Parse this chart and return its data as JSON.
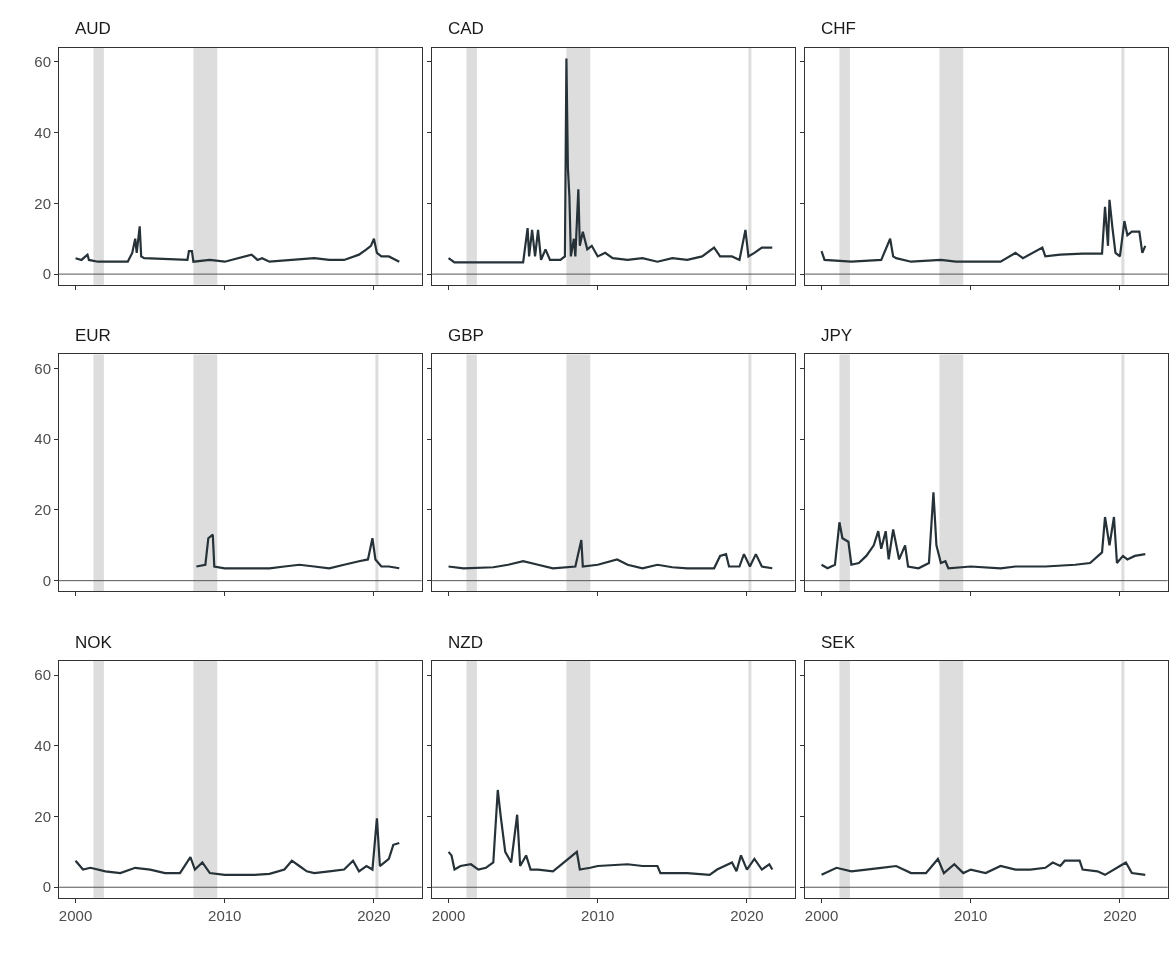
{
  "chart_data": [
    {
      "type": "line",
      "title": "AUD",
      "color": "#263238",
      "xlim": [
        1998.9,
        2023.2
      ],
      "ylim": [
        -3,
        64
      ],
      "xticks": [
        2000,
        2010,
        2020
      ],
      "yticks": [
        0,
        20,
        40,
        60
      ],
      "tick_labels": "y",
      "ref_lines": [
        {
          "axis": "y",
          "value": 0,
          "color": "#555555"
        }
      ],
      "bands": [
        {
          "axis": "x",
          "from": 2001.2,
          "to": 2001.9,
          "color": "#dddddd"
        },
        {
          "axis": "x",
          "from": 2007.9,
          "to": 2009.5,
          "color": "#dddddd"
        },
        {
          "axis": "x",
          "from": 2020.1,
          "to": 2020.3,
          "color": "#dddddd"
        }
      ],
      "x": [
        2000,
        2000.4,
        2000.8,
        2000.9,
        2001.5,
        2003.5,
        2003.8,
        2004.0,
        2004.1,
        2004.3,
        2004.4,
        2004.6,
        2007.5,
        2007.6,
        2007.8,
        2007.9,
        2009,
        2010,
        2011.8,
        2012.2,
        2012.5,
        2013,
        2016,
        2017,
        2018,
        2019,
        2019.5,
        2019.8,
        2020.0,
        2020.2,
        2020.5,
        2021,
        2021.7
      ],
      "values": [
        4.5,
        4,
        5.5,
        4,
        3.5,
        3.5,
        6,
        10,
        6,
        13.5,
        5,
        4.5,
        4,
        6.5,
        6.5,
        3.5,
        4,
        3.5,
        5.5,
        4,
        4.5,
        3.5,
        4.5,
        4,
        4,
        5.5,
        7,
        8,
        10,
        6,
        5,
        5,
        3.5
      ]
    },
    {
      "type": "line",
      "title": "CAD",
      "color": "#263238",
      "xlim": [
        1998.9,
        2023.2
      ],
      "ylim": [
        -3,
        64
      ],
      "xticks": [
        2000,
        2010,
        2020
      ],
      "yticks": [
        0,
        20,
        40,
        60
      ],
      "tick_labels": false,
      "ref_lines": [
        {
          "axis": "y",
          "value": 0,
          "color": "#555555"
        }
      ],
      "bands": [
        {
          "axis": "x",
          "from": 2001.2,
          "to": 2001.9,
          "color": "#dddddd"
        },
        {
          "axis": "x",
          "from": 2007.9,
          "to": 2009.5,
          "color": "#dddddd"
        },
        {
          "axis": "x",
          "from": 2020.1,
          "to": 2020.3,
          "color": "#dddddd"
        }
      ],
      "x": [
        2000,
        2000.4,
        2005,
        2005.3,
        2005.4,
        2005.6,
        2005.8,
        2006.0,
        2006.2,
        2006.5,
        2006.8,
        2007.5,
        2007.8,
        2007.9,
        2008.0,
        2008.1,
        2008.2,
        2008.4,
        2008.5,
        2008.7,
        2008.8,
        2009,
        2009.3,
        2009.6,
        2010,
        2010.5,
        2011,
        2012,
        2013,
        2014,
        2015,
        2016,
        2017,
        2017.8,
        2018.2,
        2019,
        2019.5,
        2019.9,
        2020.1,
        2020.5,
        2021,
        2021.7
      ],
      "values": [
        4.5,
        3.3,
        3.3,
        13,
        5,
        12.5,
        5,
        12.5,
        4,
        7,
        4,
        4,
        5,
        61,
        30,
        22,
        5,
        10,
        5,
        24,
        8,
        12,
        7,
        8,
        5,
        6,
        4.5,
        4,
        4.5,
        3.5,
        4.5,
        4,
        5,
        7.5,
        5,
        5,
        4,
        12.5,
        5,
        6,
        7.5,
        7.5
      ]
    },
    {
      "type": "line",
      "title": "CHF",
      "color": "#263238",
      "xlim": [
        1998.9,
        2023.2
      ],
      "ylim": [
        -3,
        64
      ],
      "xticks": [
        2000,
        2010,
        2020
      ],
      "yticks": [
        0,
        20,
        40,
        60
      ],
      "tick_labels": false,
      "ref_lines": [
        {
          "axis": "y",
          "value": 0,
          "color": "#555555"
        }
      ],
      "bands": [
        {
          "axis": "x",
          "from": 2001.2,
          "to": 2001.9,
          "color": "#dddddd"
        },
        {
          "axis": "x",
          "from": 2007.9,
          "to": 2009.5,
          "color": "#dddddd"
        },
        {
          "axis": "x",
          "from": 2020.1,
          "to": 2020.3,
          "color": "#dddddd"
        }
      ],
      "x": [
        2000,
        2000.2,
        2002,
        2004,
        2004.6,
        2004.8,
        2005,
        2006,
        2008,
        2009,
        2010,
        2012,
        2013,
        2013.5,
        2014.8,
        2015,
        2016,
        2017.5,
        2018.8,
        2019.0,
        2019.2,
        2019.3,
        2019.5,
        2019.7,
        2020.0,
        2020.3,
        2020.5,
        2020.8,
        2021.3,
        2021.5,
        2021.7
      ],
      "values": [
        6.5,
        4,
        3.5,
        4,
        10,
        5,
        4.5,
        3.5,
        4,
        3.5,
        3.5,
        3.5,
        6,
        4.5,
        7.5,
        5,
        5.5,
        5.8,
        5.8,
        19,
        8,
        21,
        13,
        6,
        5,
        15,
        11,
        12,
        12,
        6,
        8
      ]
    },
    {
      "type": "line",
      "title": "EUR",
      "color": "#263238",
      "xlim": [
        1998.9,
        2023.2
      ],
      "ylim": [
        -3,
        64
      ],
      "xticks": [
        2000,
        2010,
        2020
      ],
      "yticks": [
        0,
        20,
        40,
        60
      ],
      "tick_labels": "y",
      "ref_lines": [
        {
          "axis": "y",
          "value": 0,
          "color": "#555555"
        }
      ],
      "bands": [
        {
          "axis": "x",
          "from": 2001.2,
          "to": 2001.9,
          "color": "#dddddd"
        },
        {
          "axis": "x",
          "from": 2007.9,
          "to": 2009.5,
          "color": "#dddddd"
        },
        {
          "axis": "x",
          "from": 2020.1,
          "to": 2020.3,
          "color": "#dddddd"
        }
      ],
      "x": [
        2008.1,
        2008.7,
        2008.9,
        2009.2,
        2009.3,
        2010,
        2013,
        2014,
        2015,
        2016,
        2017,
        2018,
        2019,
        2019.6,
        2019.9,
        2020.1,
        2020.5,
        2021,
        2021.7
      ],
      "values": [
        4,
        4.5,
        12,
        13,
        4,
        3.5,
        3.5,
        4,
        4.5,
        4,
        3.5,
        4.5,
        5.5,
        6,
        12,
        6,
        4,
        4,
        3.5
      ]
    },
    {
      "type": "line",
      "title": "GBP",
      "color": "#263238",
      "xlim": [
        1998.9,
        2023.2
      ],
      "ylim": [
        -3,
        64
      ],
      "xticks": [
        2000,
        2010,
        2020
      ],
      "yticks": [
        0,
        20,
        40,
        60
      ],
      "tick_labels": false,
      "ref_lines": [
        {
          "axis": "y",
          "value": 0,
          "color": "#555555"
        }
      ],
      "bands": [
        {
          "axis": "x",
          "from": 2001.2,
          "to": 2001.9,
          "color": "#dddddd"
        },
        {
          "axis": "x",
          "from": 2007.9,
          "to": 2009.5,
          "color": "#dddddd"
        },
        {
          "axis": "x",
          "from": 2020.1,
          "to": 2020.3,
          "color": "#dddddd"
        }
      ],
      "x": [
        2000,
        2001,
        2003,
        2004,
        2005,
        2006,
        2007,
        2008.5,
        2008.9,
        2009.0,
        2010,
        2011.3,
        2012,
        2013,
        2014,
        2015,
        2016,
        2017.8,
        2018.2,
        2018.6,
        2018.8,
        2019.5,
        2019.8,
        2020.2,
        2020.6,
        2021,
        2021.7
      ],
      "values": [
        4,
        3.5,
        3.8,
        4.5,
        5.5,
        4.5,
        3.5,
        4,
        11.5,
        4,
        4.5,
        6,
        4.5,
        3.5,
        4.5,
        3.8,
        3.5,
        3.5,
        7,
        7.5,
        4,
        4,
        7.5,
        4,
        7.5,
        4,
        3.5
      ]
    },
    {
      "type": "line",
      "title": "JPY",
      "color": "#263238",
      "xlim": [
        1998.9,
        2023.2
      ],
      "ylim": [
        -3,
        64
      ],
      "xticks": [
        2000,
        2010,
        2020
      ],
      "yticks": [
        0,
        20,
        40,
        60
      ],
      "tick_labels": false,
      "ref_lines": [
        {
          "axis": "y",
          "value": 0,
          "color": "#555555"
        }
      ],
      "bands": [
        {
          "axis": "x",
          "from": 2001.2,
          "to": 2001.9,
          "color": "#dddddd"
        },
        {
          "axis": "x",
          "from": 2007.9,
          "to": 2009.5,
          "color": "#dddddd"
        },
        {
          "axis": "x",
          "from": 2020.1,
          "to": 2020.3,
          "color": "#dddddd"
        }
      ],
      "x": [
        2000,
        2000.4,
        2000.9,
        2001.2,
        2001.4,
        2001.8,
        2002.0,
        2002.5,
        2003,
        2003.5,
        2003.8,
        2004.0,
        2004.3,
        2004.5,
        2004.8,
        2005.2,
        2005.6,
        2005.8,
        2006.5,
        2007.2,
        2007.5,
        2007.7,
        2008,
        2008.3,
        2008.5,
        2010,
        2012,
        2013,
        2015,
        2017,
        2018,
        2018.8,
        2019.0,
        2019.3,
        2019.6,
        2019.8,
        2020.2,
        2020.5,
        2021,
        2021.7
      ],
      "values": [
        4.5,
        3.5,
        4.5,
        16.5,
        12,
        11,
        4.5,
        5,
        7,
        10,
        14,
        9,
        14,
        6,
        14.5,
        6,
        10,
        4,
        3.5,
        5,
        25,
        10,
        5,
        5.5,
        3.5,
        4,
        3.5,
        4,
        4,
        4.5,
        5,
        8,
        18,
        10,
        18,
        5,
        7,
        6,
        7,
        7.5
      ]
    },
    {
      "type": "line",
      "title": "NOK",
      "color": "#263238",
      "xlim": [
        1998.9,
        2023.2
      ],
      "ylim": [
        -3,
        64
      ],
      "xticks": [
        2000,
        2010,
        2020
      ],
      "yticks": [
        0,
        20,
        40,
        60
      ],
      "ref_lines": [
        {
          "axis": "y",
          "value": 0,
          "color": "#555555"
        }
      ],
      "bands": [
        {
          "axis": "x",
          "from": 2001.2,
          "to": 2001.9,
          "color": "#dddddd"
        },
        {
          "axis": "x",
          "from": 2007.9,
          "to": 2009.5,
          "color": "#dddddd"
        },
        {
          "axis": "x",
          "from": 2020.1,
          "to": 2020.3,
          "color": "#dddddd"
        }
      ],
      "x": [
        2000,
        2000.5,
        2001,
        2002,
        2003,
        2004,
        2005,
        2006,
        2007,
        2007.7,
        2008,
        2008.5,
        2009,
        2010,
        2012,
        2013,
        2014,
        2014.5,
        2015,
        2015.5,
        2016,
        2017,
        2018,
        2018.6,
        2019,
        2019.5,
        2019.9,
        2020.2,
        2020.4,
        2021,
        2021.3,
        2021.7
      ],
      "values": [
        7.5,
        5,
        5.5,
        4.5,
        4,
        5.5,
        5,
        4,
        4,
        8.5,
        5,
        7,
        4,
        3.5,
        3.5,
        3.8,
        5,
        7.5,
        6,
        4.5,
        4,
        4.5,
        5,
        7.5,
        4.5,
        6,
        5,
        19.5,
        6,
        8,
        12,
        12.5
      ]
    },
    {
      "type": "line",
      "title": "NZD",
      "color": "#263238",
      "xlim": [
        1998.9,
        2023.2
      ],
      "ylim": [
        -3,
        64
      ],
      "xticks": [
        2000,
        2010,
        2020
      ],
      "yticks": [
        0,
        20,
        40,
        60
      ],
      "tick_labels": "x",
      "ref_lines": [
        {
          "axis": "y",
          "value": 0,
          "color": "#555555"
        }
      ],
      "bands": [
        {
          "axis": "x",
          "from": 2001.2,
          "to": 2001.9,
          "color": "#dddddd"
        },
        {
          "axis": "x",
          "from": 2007.9,
          "to": 2009.5,
          "color": "#dddddd"
        },
        {
          "axis": "x",
          "from": 2020.1,
          "to": 2020.3,
          "color": "#dddddd"
        }
      ],
      "x": [
        2000,
        2000.2,
        2000.4,
        2000.8,
        2001.5,
        2002,
        2002.5,
        2003.0,
        2003.3,
        2003.5,
        2003.8,
        2004.2,
        2004.6,
        2004.8,
        2005.2,
        2005.5,
        2006,
        2007,
        2008.6,
        2008.8,
        2009.5,
        2010,
        2012,
        2013,
        2014,
        2014.2,
        2016,
        2017.5,
        2018,
        2019,
        2019.3,
        2019.6,
        2020,
        2020.5,
        2021,
        2021.5,
        2021.7
      ],
      "values": [
        10,
        9,
        5,
        6,
        6.5,
        5,
        5.5,
        7,
        27.5,
        20,
        10,
        7,
        20.5,
        6,
        9,
        5,
        5,
        4.5,
        10,
        5,
        5.5,
        6,
        6.5,
        6,
        6,
        4,
        4,
        3.5,
        5,
        7,
        4.5,
        9,
        5,
        8,
        5,
        6.5,
        5
      ]
    },
    {
      "type": "line",
      "title": "SEK",
      "color": "#263238",
      "xlim": [
        1998.9,
        2023.2
      ],
      "ylim": [
        -3,
        64
      ],
      "xticks": [
        2000,
        2010,
        2020
      ],
      "yticks": [
        0,
        20,
        40,
        60
      ],
      "tick_labels": "x",
      "ref_lines": [
        {
          "axis": "y",
          "value": 0,
          "color": "#555555"
        }
      ],
      "bands": [
        {
          "axis": "x",
          "from": 2001.2,
          "to": 2001.9,
          "color": "#dddddd"
        },
        {
          "axis": "x",
          "from": 2007.9,
          "to": 2009.5,
          "color": "#dddddd"
        },
        {
          "axis": "x",
          "from": 2020.1,
          "to": 2020.3,
          "color": "#dddddd"
        }
      ],
      "x": [
        2000,
        2001,
        2002,
        2003,
        2004,
        2005,
        2006,
        2007,
        2007.8,
        2008.2,
        2008.9,
        2009.5,
        2010,
        2011,
        2012,
        2013,
        2014,
        2015,
        2015.5,
        2016,
        2016.3,
        2017.3,
        2017.5,
        2018.5,
        2019,
        2020,
        2020.4,
        2020.8,
        2021.7
      ],
      "values": [
        3.5,
        5.5,
        4.5,
        5,
        5.5,
        6,
        4,
        4,
        8,
        4,
        6.5,
        4,
        5,
        4,
        6,
        5,
        5,
        5.5,
        7,
        6,
        7.5,
        7.5,
        5,
        4.5,
        3.5,
        6,
        7,
        4,
        3.5
      ]
    }
  ]
}
